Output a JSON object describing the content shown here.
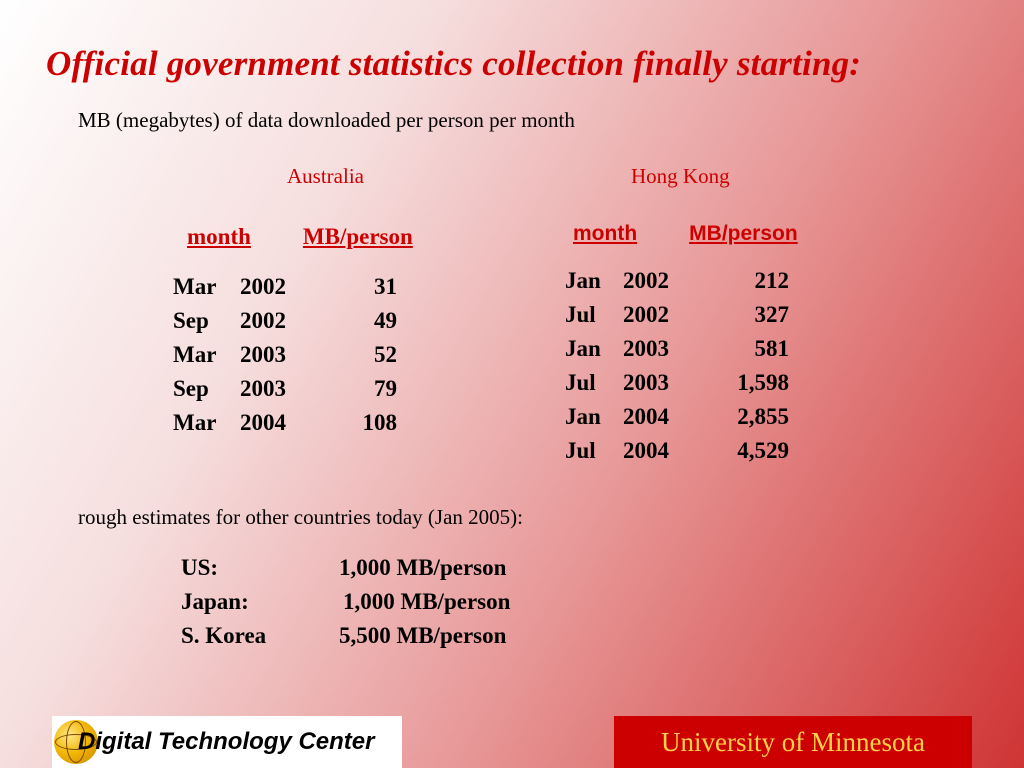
{
  "slide": {
    "title": "Official government statistics collection finally starting:",
    "subtitle": "MB (megabytes) of data downloaded per person per month",
    "estimate_note": "rough estimates for other countries today (Jan 2005):"
  },
  "tables": {
    "australia": {
      "label": "Australia",
      "header_month": "month",
      "header_value": "MB/person",
      "rows": [
        {
          "month": "Mar",
          "year": "2002",
          "value": "31"
        },
        {
          "month": "Sep",
          "year": "2002",
          "value": "49"
        },
        {
          "month": "Mar",
          "year": "2003",
          "value": "52"
        },
        {
          "month": "Sep",
          "year": "2003",
          "value": "79"
        },
        {
          "month": "Mar",
          "year": "2004",
          "value": "108"
        }
      ]
    },
    "hongkong": {
      "label": "Hong Kong",
      "header_month": "month",
      "header_value": "MB/person",
      "rows": [
        {
          "month": "Jan",
          "year": "2002",
          "value": "212"
        },
        {
          "month": "Jul",
          "year": "2002",
          "value": "327"
        },
        {
          "month": "Jan",
          "year": "2003",
          "value": "581"
        },
        {
          "month": "Jul",
          "year": "2003",
          "value": "1,598"
        },
        {
          "month": "Jan",
          "year": "2004",
          "value": "2,855"
        },
        {
          "month": "Jul",
          "year": "2004",
          "value": "4,529"
        }
      ]
    }
  },
  "estimates": [
    {
      "country": "US:",
      "amount": "1,000 MB/person"
    },
    {
      "country": "Japan:",
      "amount": "1,000 MB/person"
    },
    {
      "country": "S. Korea",
      "amount": "5,500 MB/person"
    }
  ],
  "footer": {
    "dtc_logo_text": "Digital Technology Center",
    "university": "University of Minnesota"
  },
  "colors": {
    "accent": "#cc0000",
    "university_text": "#ffd24a"
  }
}
